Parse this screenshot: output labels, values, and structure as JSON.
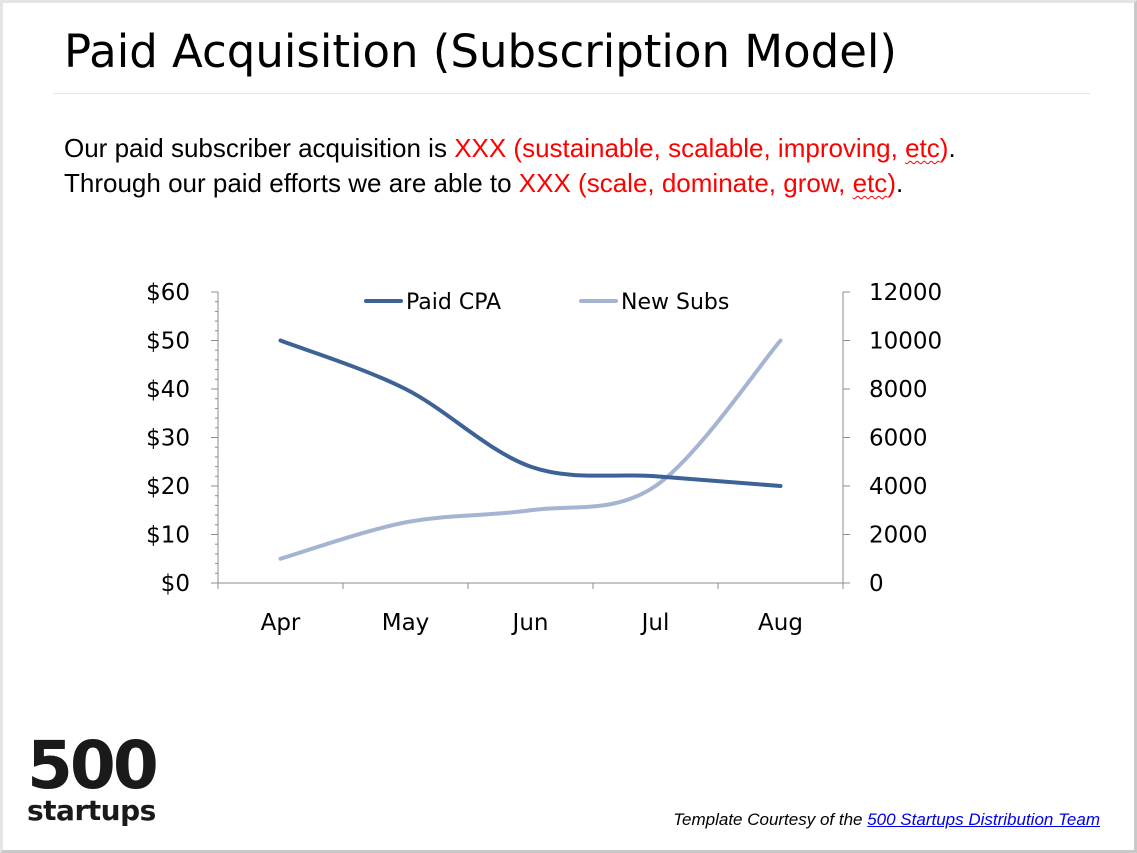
{
  "slide": {
    "title": "Paid Acquisition (Subscription Model)",
    "line1_a": "Our paid subscriber acquisition is ",
    "line1_red_a": "XXX (sustainable, scalable, improving, ",
    "line1_red_b": "etc",
    "line1_red_c": ")",
    "line1_end": ".",
    "line2_a": "Through our paid efforts we are able to ",
    "line2_red_a": "XXX (scale, dominate, grow, ",
    "line2_red_b": "etc",
    "line2_red_c": ")",
    "line2_end": ".",
    "text_color": "#000000",
    "highlight_color": "#ff0000"
  },
  "logo": {
    "number": "500",
    "word": "startups"
  },
  "footer": {
    "credit_prefix": "Template Courtesy of the ",
    "credit_link": "500 Startups Distribution Team",
    "link_color": "#0000ee"
  },
  "chart_data": {
    "type": "line",
    "categories": [
      "Apr",
      "May",
      "Jun",
      "Jul",
      "Aug"
    ],
    "series": [
      {
        "name": "Paid CPA",
        "axis": "left",
        "values": [
          50,
          40,
          24,
          22,
          20
        ],
        "color": "#3d6396"
      },
      {
        "name": "New Subs",
        "axis": "right",
        "values": [
          1000,
          2500,
          3000,
          4000,
          10000
        ],
        "color": "#a5b4d2"
      }
    ],
    "y_left": {
      "min": 0,
      "max": 60,
      "ticks": [
        0,
        10,
        20,
        30,
        40,
        50,
        60
      ],
      "tick_labels": [
        "$0",
        "$10",
        "$20",
        "$30",
        "$40",
        "$50",
        "$60"
      ]
    },
    "y_right": {
      "min": 0,
      "max": 12000,
      "ticks": [
        0,
        2000,
        4000,
        6000,
        8000,
        10000,
        12000
      ],
      "tick_labels": [
        "0",
        "2000",
        "4000",
        "6000",
        "8000",
        "10000",
        "12000"
      ]
    },
    "legend": "top",
    "grid": false,
    "smooth": true
  }
}
